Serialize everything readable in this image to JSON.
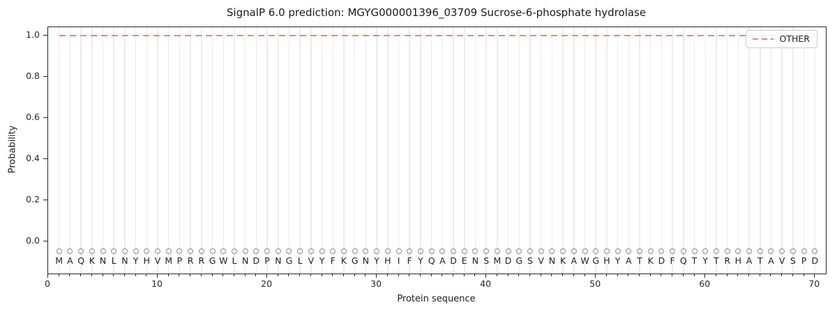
{
  "chart_data": {
    "type": "line",
    "title": "SignalP 6.0 prediction: MGYG000001396_03709 Sucrose-6-phosphate hydrolase",
    "xlabel": "Protein sequence",
    "ylabel": "Probability",
    "xlim": [
      0,
      71
    ],
    "ylim": [
      -0.15,
      1.04
    ],
    "x_major_ticks": [
      0,
      10,
      20,
      30,
      40,
      50,
      60,
      70
    ],
    "y_ticks": [
      0.0,
      0.2,
      0.4,
      0.6,
      0.8,
      1.0
    ],
    "grid": {
      "vertical_minor_gridlines_per_residue": true,
      "gridline_color": "#ececec"
    },
    "legend": {
      "position": "upper-right",
      "entries": [
        {
          "label": "OTHER",
          "color": "#f08080",
          "linestyle": "dashed"
        }
      ]
    },
    "series": [
      {
        "name": "OTHER",
        "color": "#f08080",
        "linestyle": "dashed",
        "x_range": [
          1,
          70
        ],
        "values": [
          1.0,
          1.0,
          1.0,
          1.0,
          1.0,
          1.0,
          1.0,
          1.0,
          1.0,
          1.0,
          1.0,
          1.0,
          1.0,
          1.0,
          1.0,
          1.0,
          1.0,
          1.0,
          1.0,
          1.0,
          1.0,
          1.0,
          1.0,
          1.0,
          1.0,
          1.0,
          1.0,
          1.0,
          1.0,
          1.0,
          1.0,
          1.0,
          1.0,
          1.0,
          1.0,
          1.0,
          1.0,
          1.0,
          1.0,
          1.0,
          1.0,
          1.0,
          1.0,
          1.0,
          1.0,
          1.0,
          1.0,
          1.0,
          1.0,
          1.0,
          1.0,
          1.0,
          1.0,
          1.0,
          1.0,
          1.0,
          1.0,
          1.0,
          1.0,
          1.0,
          1.0,
          1.0,
          1.0,
          1.0,
          1.0,
          1.0,
          1.0,
          1.0,
          1.0,
          1.0
        ]
      }
    ],
    "sequence_row": {
      "residues": "MAQKNLNYHVMPRRGWLNDPNGLVYFKGNYHIFYQADENSMDGSVNKAWGHYATKDFQTYTRHATAVSPD",
      "marker": "open-circle",
      "marker_color": "#8a8a8a",
      "positions_start": 1
    }
  },
  "colors": {
    "background": "#ffffff",
    "spine": "#262626",
    "series_other": "#f08080",
    "gridline": "#ececec",
    "marker_stroke": "#8a8a8a",
    "text": "#1a1a1a",
    "legend_border": "#cccccc"
  }
}
